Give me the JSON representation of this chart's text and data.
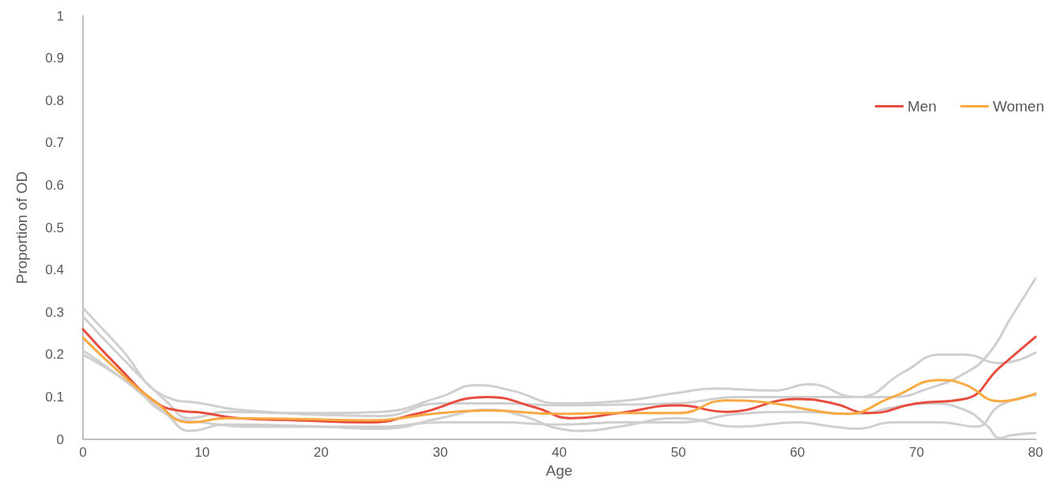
{
  "chart_data": {
    "type": "line",
    "xlabel": "Age",
    "ylabel": "Proportion of OD",
    "xlim": [
      0,
      80
    ],
    "xticks": [
      0,
      10,
      20,
      30,
      40,
      50,
      60,
      70,
      80
    ],
    "ylim": [
      0,
      1
    ],
    "yticks": [
      0,
      0.1,
      0.2,
      0.3,
      0.4,
      0.5,
      0.6,
      0.7,
      0.8,
      0.9,
      1
    ],
    "grid": false,
    "legend": "top right",
    "marker": "none",
    "line_style": "solid",
    "series": [
      {
        "color": "#d0cece",
        "x": [
          0,
          3,
          7,
          10,
          13,
          20,
          25,
          30,
          33,
          36,
          40,
          45,
          50,
          53,
          58,
          61,
          65,
          68,
          71,
          74,
          76,
          78,
          80
        ],
        "values": [
          0.31,
          0.22,
          0.1,
          0.085,
          0.07,
          0.062,
          0.065,
          0.1,
          0.128,
          0.115,
          0.085,
          0.09,
          0.11,
          0.12,
          0.115,
          0.13,
          0.1,
          0.1,
          0.12,
          0.155,
          0.2,
          0.29,
          0.38
        ]
      },
      {
        "color": "#d0cece",
        "x": [
          0,
          3,
          7,
          9,
          12,
          20,
          25,
          30,
          35,
          40,
          45,
          50,
          55,
          60,
          65,
          69,
          72,
          74,
          77,
          80
        ],
        "values": [
          0.29,
          0.2,
          0.09,
          0.05,
          0.065,
          0.058,
          0.055,
          0.085,
          0.085,
          0.08,
          0.082,
          0.085,
          0.1,
          0.1,
          0.1,
          0.16,
          0.2,
          0.2,
          0.18,
          0.205
        ]
      },
      {
        "color": "#d0cece",
        "x": [
          0,
          3,
          7,
          9,
          12,
          20,
          25,
          30,
          34,
          37,
          40,
          42,
          45,
          50,
          55,
          60,
          63,
          65,
          68,
          72,
          75,
          77,
          80
        ],
        "values": [
          0.21,
          0.15,
          0.06,
          0.02,
          0.035,
          0.03,
          0.025,
          0.05,
          0.07,
          0.055,
          0.025,
          0.02,
          0.03,
          0.05,
          0.03,
          0.04,
          0.03,
          0.025,
          0.04,
          0.04,
          0.03,
          0.08,
          0.105
        ]
      },
      {
        "color": "#d0cece",
        "x": [
          0,
          4,
          7,
          10,
          15,
          20,
          25,
          30,
          35,
          40,
          45,
          50,
          55,
          60,
          65,
          68,
          71,
          74,
          76,
          77,
          78,
          80
        ],
        "values": [
          0.2,
          0.13,
          0.06,
          0.04,
          0.03,
          0.03,
          0.03,
          0.04,
          0.04,
          0.035,
          0.04,
          0.04,
          0.06,
          0.065,
          0.06,
          0.075,
          0.085,
          0.07,
          0.03,
          0.003,
          0.01,
          0.015
        ]
      },
      {
        "name": "Men",
        "color": "#e84c3d",
        "x": [
          0,
          3,
          6,
          8,
          10,
          13,
          18,
          24,
          28,
          34,
          38,
          41,
          45,
          50,
          54,
          60,
          63,
          66,
          70,
          74,
          77,
          80
        ],
        "values": [
          0.26,
          0.17,
          0.09,
          0.068,
          0.063,
          0.05,
          0.045,
          0.04,
          0.06,
          0.1,
          0.075,
          0.05,
          0.062,
          0.08,
          0.065,
          0.095,
          0.085,
          0.062,
          0.085,
          0.095,
          0.17,
          0.242
        ]
      },
      {
        "name": "Women",
        "color": "#f9a942",
        "x": [
          0,
          3,
          6,
          9,
          12,
          18,
          24,
          30,
          34,
          40,
          44,
          50,
          54,
          58,
          61,
          64,
          68,
          72,
          74,
          77,
          80
        ],
        "values": [
          0.24,
          0.16,
          0.09,
          0.04,
          0.05,
          0.048,
          0.045,
          0.062,
          0.068,
          0.06,
          0.062,
          0.062,
          0.092,
          0.085,
          0.07,
          0.06,
          0.1,
          0.14,
          0.13,
          0.09,
          0.108
        ]
      }
    ]
  }
}
